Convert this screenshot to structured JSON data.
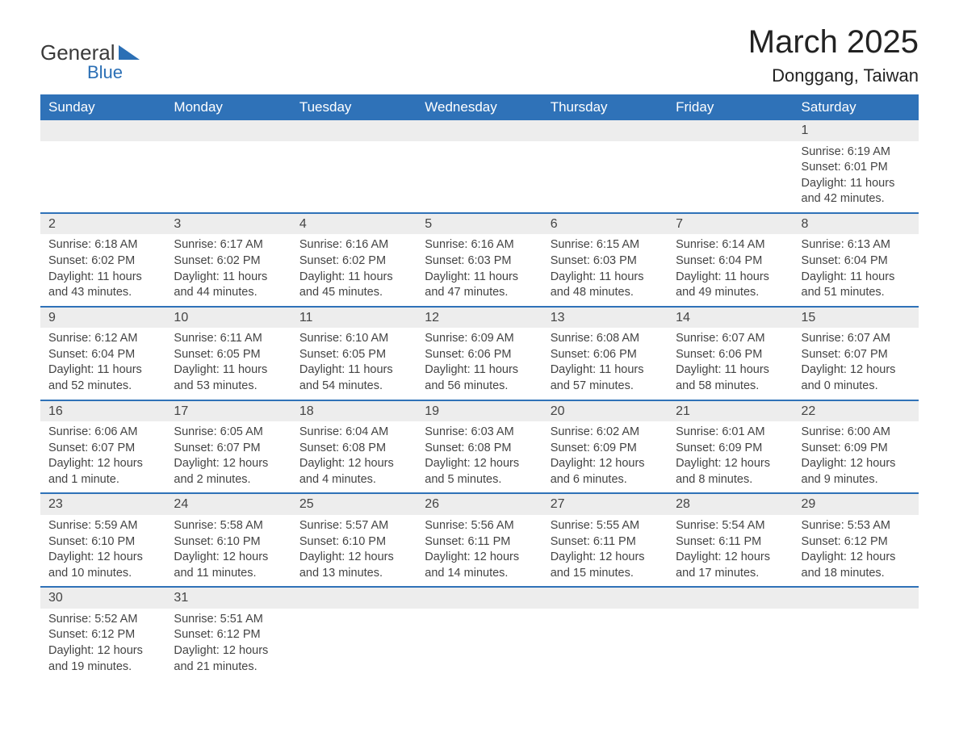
{
  "logo": {
    "part1": "General",
    "part2": "Blue"
  },
  "title": "March 2025",
  "location": "Donggang, Taiwan",
  "day_headers": [
    "Sunday",
    "Monday",
    "Tuesday",
    "Wednesday",
    "Thursday",
    "Friday",
    "Saturday"
  ],
  "colors": {
    "header_bg": "#2f72b8",
    "header_text": "#ffffff",
    "daynum_bg": "#ededed",
    "row_border": "#2f72b8",
    "logo_accent": "#2b6fb5",
    "body_text": "#444444",
    "page_bg": "#ffffff"
  },
  "labels": {
    "sunrise_prefix": "Sunrise: ",
    "sunset_prefix": "Sunset: ",
    "daylight_prefix": "Daylight: "
  },
  "weeks": [
    [
      null,
      null,
      null,
      null,
      null,
      null,
      {
        "n": "1",
        "sunrise": "6:19 AM",
        "sunset": "6:01 PM",
        "daylight": "11 hours and 42 minutes."
      }
    ],
    [
      {
        "n": "2",
        "sunrise": "6:18 AM",
        "sunset": "6:02 PM",
        "daylight": "11 hours and 43 minutes."
      },
      {
        "n": "3",
        "sunrise": "6:17 AM",
        "sunset": "6:02 PM",
        "daylight": "11 hours and 44 minutes."
      },
      {
        "n": "4",
        "sunrise": "6:16 AM",
        "sunset": "6:02 PM",
        "daylight": "11 hours and 45 minutes."
      },
      {
        "n": "5",
        "sunrise": "6:16 AM",
        "sunset": "6:03 PM",
        "daylight": "11 hours and 47 minutes."
      },
      {
        "n": "6",
        "sunrise": "6:15 AM",
        "sunset": "6:03 PM",
        "daylight": "11 hours and 48 minutes."
      },
      {
        "n": "7",
        "sunrise": "6:14 AM",
        "sunset": "6:04 PM",
        "daylight": "11 hours and 49 minutes."
      },
      {
        "n": "8",
        "sunrise": "6:13 AM",
        "sunset": "6:04 PM",
        "daylight": "11 hours and 51 minutes."
      }
    ],
    [
      {
        "n": "9",
        "sunrise": "6:12 AM",
        "sunset": "6:04 PM",
        "daylight": "11 hours and 52 minutes."
      },
      {
        "n": "10",
        "sunrise": "6:11 AM",
        "sunset": "6:05 PM",
        "daylight": "11 hours and 53 minutes."
      },
      {
        "n": "11",
        "sunrise": "6:10 AM",
        "sunset": "6:05 PM",
        "daylight": "11 hours and 54 minutes."
      },
      {
        "n": "12",
        "sunrise": "6:09 AM",
        "sunset": "6:06 PM",
        "daylight": "11 hours and 56 minutes."
      },
      {
        "n": "13",
        "sunrise": "6:08 AM",
        "sunset": "6:06 PM",
        "daylight": "11 hours and 57 minutes."
      },
      {
        "n": "14",
        "sunrise": "6:07 AM",
        "sunset": "6:06 PM",
        "daylight": "11 hours and 58 minutes."
      },
      {
        "n": "15",
        "sunrise": "6:07 AM",
        "sunset": "6:07 PM",
        "daylight": "12 hours and 0 minutes."
      }
    ],
    [
      {
        "n": "16",
        "sunrise": "6:06 AM",
        "sunset": "6:07 PM",
        "daylight": "12 hours and 1 minute."
      },
      {
        "n": "17",
        "sunrise": "6:05 AM",
        "sunset": "6:07 PM",
        "daylight": "12 hours and 2 minutes."
      },
      {
        "n": "18",
        "sunrise": "6:04 AM",
        "sunset": "6:08 PM",
        "daylight": "12 hours and 4 minutes."
      },
      {
        "n": "19",
        "sunrise": "6:03 AM",
        "sunset": "6:08 PM",
        "daylight": "12 hours and 5 minutes."
      },
      {
        "n": "20",
        "sunrise": "6:02 AM",
        "sunset": "6:09 PM",
        "daylight": "12 hours and 6 minutes."
      },
      {
        "n": "21",
        "sunrise": "6:01 AM",
        "sunset": "6:09 PM",
        "daylight": "12 hours and 8 minutes."
      },
      {
        "n": "22",
        "sunrise": "6:00 AM",
        "sunset": "6:09 PM",
        "daylight": "12 hours and 9 minutes."
      }
    ],
    [
      {
        "n": "23",
        "sunrise": "5:59 AM",
        "sunset": "6:10 PM",
        "daylight": "12 hours and 10 minutes."
      },
      {
        "n": "24",
        "sunrise": "5:58 AM",
        "sunset": "6:10 PM",
        "daylight": "12 hours and 11 minutes."
      },
      {
        "n": "25",
        "sunrise": "5:57 AM",
        "sunset": "6:10 PM",
        "daylight": "12 hours and 13 minutes."
      },
      {
        "n": "26",
        "sunrise": "5:56 AM",
        "sunset": "6:11 PM",
        "daylight": "12 hours and 14 minutes."
      },
      {
        "n": "27",
        "sunrise": "5:55 AM",
        "sunset": "6:11 PM",
        "daylight": "12 hours and 15 minutes."
      },
      {
        "n": "28",
        "sunrise": "5:54 AM",
        "sunset": "6:11 PM",
        "daylight": "12 hours and 17 minutes."
      },
      {
        "n": "29",
        "sunrise": "5:53 AM",
        "sunset": "6:12 PM",
        "daylight": "12 hours and 18 minutes."
      }
    ],
    [
      {
        "n": "30",
        "sunrise": "5:52 AM",
        "sunset": "6:12 PM",
        "daylight": "12 hours and 19 minutes."
      },
      {
        "n": "31",
        "sunrise": "5:51 AM",
        "sunset": "6:12 PM",
        "daylight": "12 hours and 21 minutes."
      },
      null,
      null,
      null,
      null,
      null
    ]
  ]
}
